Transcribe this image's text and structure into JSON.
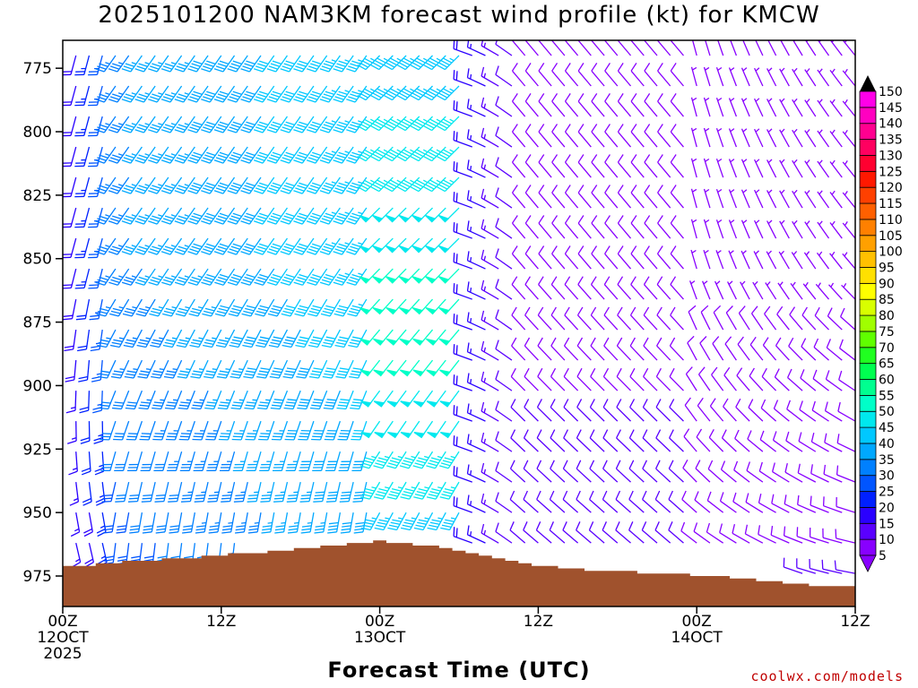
{
  "chart_data": {
    "type": "wind-barb time-height section",
    "title": "2025101200 NAM3KM forecast wind profile (kt) for KMCW",
    "xlabel": "Forecast Time (UTC)",
    "ylabel": "",
    "y_axis": {
      "label": "",
      "ticks": [
        775,
        800,
        825,
        850,
        875,
        900,
        925,
        950,
        975
      ],
      "range": [
        764,
        987
      ],
      "inverted": true
    },
    "x_axis": {
      "range_hours": [
        0,
        60
      ],
      "ticks": [
        {
          "hour": 0,
          "lines": [
            "00Z",
            "12OCT",
            "2025"
          ]
        },
        {
          "hour": 12,
          "lines": [
            "12Z"
          ]
        },
        {
          "hour": 24,
          "lines": [
            "00Z",
            "13OCT"
          ]
        },
        {
          "hour": 36,
          "lines": [
            "12Z"
          ]
        },
        {
          "hour": 48,
          "lines": [
            "00Z",
            "14OCT"
          ]
        },
        {
          "hour": 60,
          "lines": [
            "12Z"
          ]
        }
      ]
    },
    "colorbar": {
      "labels": [
        5,
        10,
        15,
        20,
        25,
        30,
        35,
        40,
        45,
        50,
        55,
        60,
        65,
        70,
        75,
        80,
        85,
        90,
        95,
        100,
        105,
        110,
        115,
        120,
        125,
        130,
        135,
        140,
        145,
        150
      ],
      "colors": [
        "#8800ff",
        "#5a00ff",
        "#2a00ff",
        "#0020ff",
        "#0055ff",
        "#0080ff",
        "#00a8ff",
        "#00c8ff",
        "#00e8ee",
        "#00ffc8",
        "#00ff90",
        "#00ff50",
        "#20ff20",
        "#60ff00",
        "#a0ff00",
        "#d8ff00",
        "#ffff00",
        "#ffe000",
        "#ffc000",
        "#ffa000",
        "#ff8000",
        "#ff6000",
        "#ff4000",
        "#ff1800",
        "#ff0030",
        "#ff0060",
        "#ff0090",
        "#ff00c0",
        "#ff00e8"
      ],
      "extend": "both"
    },
    "terrain_color": "#a0522d",
    "surface_pressure": [
      {
        "hour": 0,
        "p": 971
      },
      {
        "hour": 2,
        "p": 971
      },
      {
        "hour": 3,
        "p": 970
      },
      {
        "hour": 6,
        "p": 969
      },
      {
        "hour": 9,
        "p": 968
      },
      {
        "hour": 13,
        "p": 966
      },
      {
        "hour": 17,
        "p": 965
      },
      {
        "hour": 20,
        "p": 963
      },
      {
        "hour": 22,
        "p": 962
      },
      {
        "hour": 24,
        "p": 961
      },
      {
        "hour": 26,
        "p": 962
      },
      {
        "hour": 28,
        "p": 963
      },
      {
        "hour": 30,
        "p": 965
      },
      {
        "hour": 32,
        "p": 967
      },
      {
        "hour": 34,
        "p": 969
      },
      {
        "hour": 38,
        "p": 972
      },
      {
        "hour": 42,
        "p": 973
      },
      {
        "hour": 46,
        "p": 974
      },
      {
        "hour": 50,
        "p": 975
      },
      {
        "hour": 54,
        "p": 977
      },
      {
        "hour": 58,
        "p": 979
      },
      {
        "hour": 60,
        "p": 979
      }
    ],
    "wind_regimes": [
      {
        "hours": [
          0,
          4
        ],
        "speed_kt": 20,
        "direction": "SSE backing to S"
      },
      {
        "hours": [
          4,
          24
        ],
        "speed_kt": 35,
        "direction": "S to SSW",
        "max_kt": 50
      },
      {
        "hours": [
          24,
          32
        ],
        "speed_kt": 45,
        "direction": "SW",
        "max_kt": 55
      },
      {
        "hours": [
          32,
          36
        ],
        "speed_kt": 15,
        "direction": "NW to W"
      },
      {
        "hours": [
          36,
          48
        ],
        "speed_kt": 10,
        "direction": "NW"
      },
      {
        "hours": [
          48,
          60
        ],
        "speed_kt": 8,
        "direction": "N to NW"
      }
    ]
  },
  "credit": "coolwx.com/models"
}
